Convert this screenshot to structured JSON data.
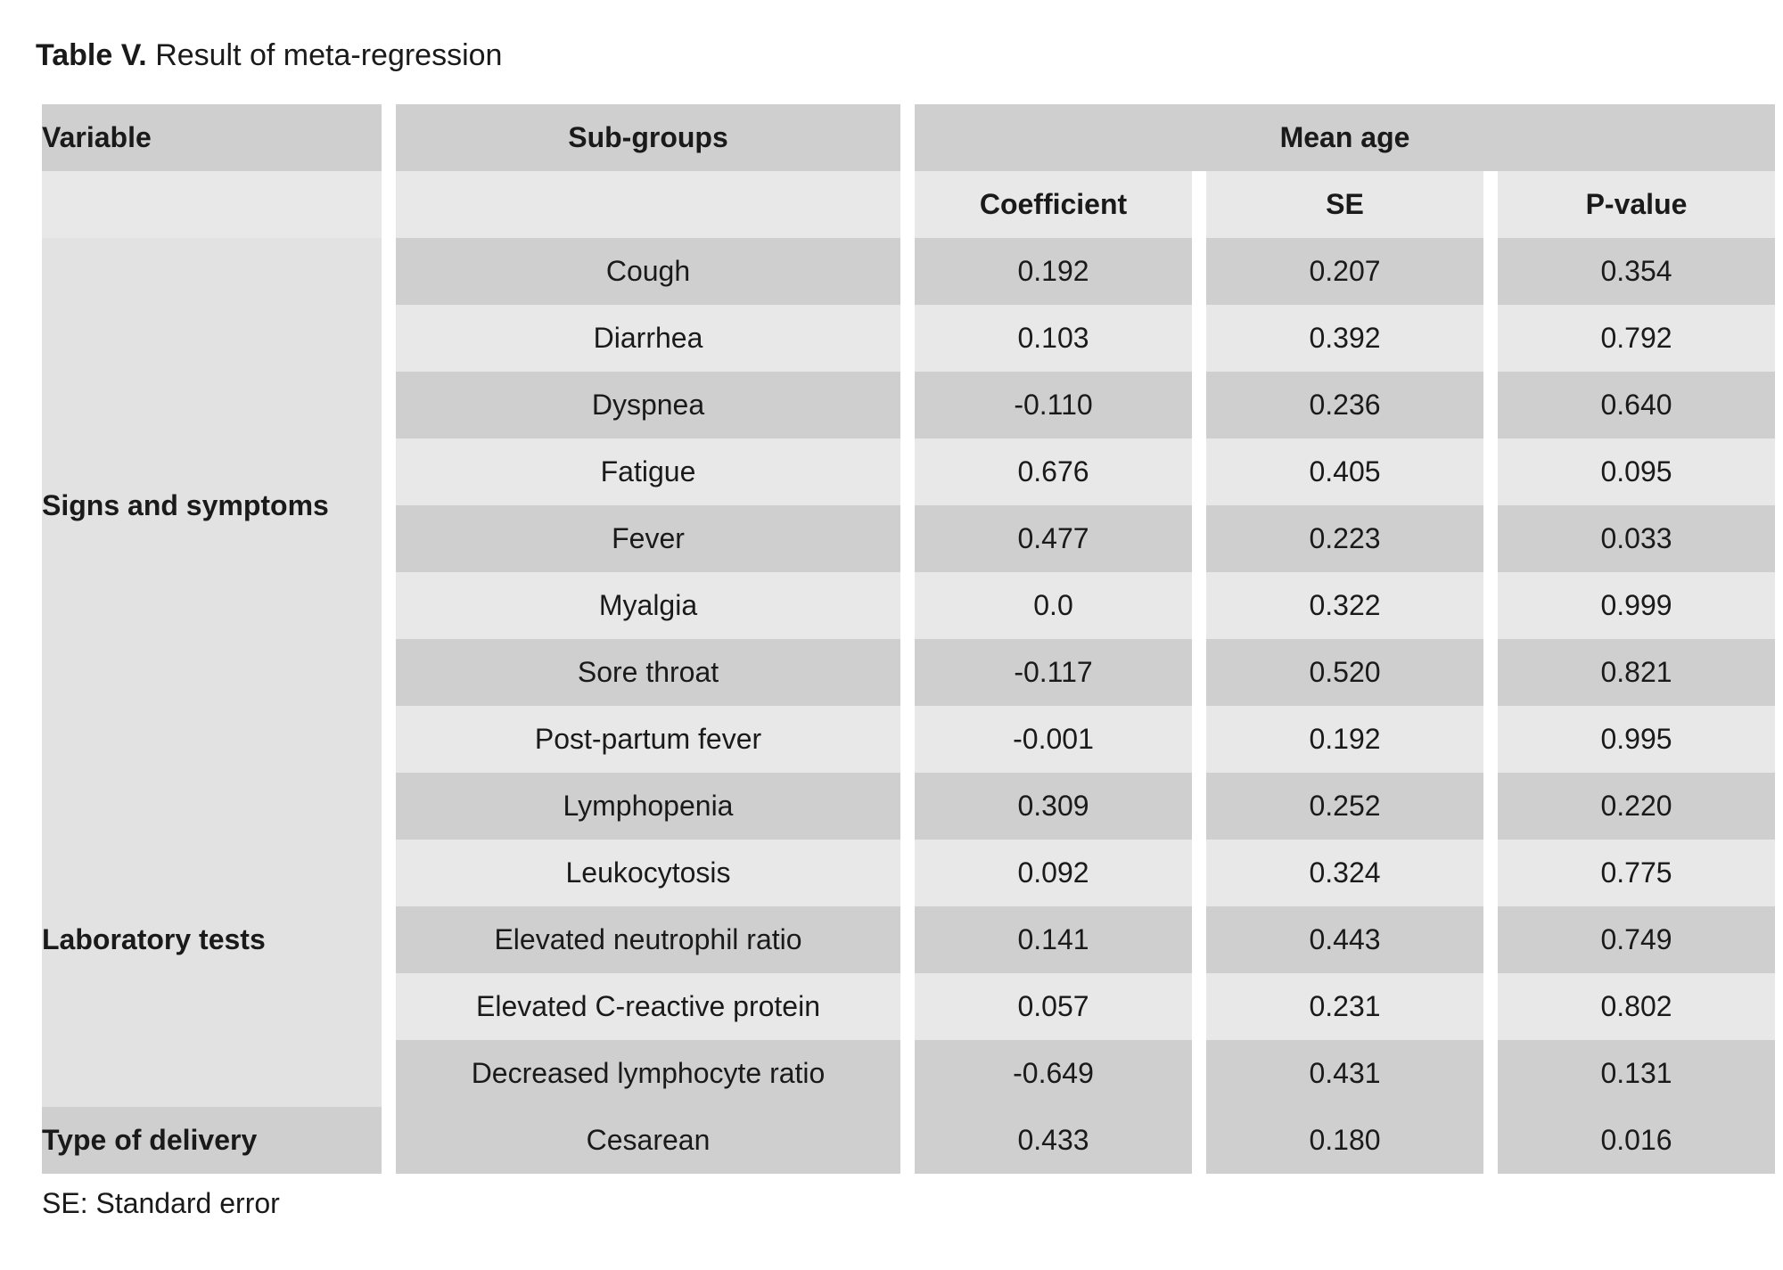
{
  "caption": {
    "label": "Table V.",
    "text": "Result of meta-regression"
  },
  "table": {
    "headers": {
      "variable": "Variable",
      "subgroups": "Sub-groups",
      "group": "Mean age",
      "coefficient": "Coefficient",
      "se": "SE",
      "pvalue": "P-value"
    },
    "variables": [
      "Signs and symptoms",
      "Laboratory tests",
      "Type of delivery"
    ],
    "rows": [
      {
        "subgroup": "Cough",
        "coefficient": "0.192",
        "se": "0.207",
        "pvalue": "0.354"
      },
      {
        "subgroup": "Diarrhea",
        "coefficient": "0.103",
        "se": "0.392",
        "pvalue": "0.792"
      },
      {
        "subgroup": "Dyspnea",
        "coefficient": "-0.110",
        "se": "0.236",
        "pvalue": "0.640"
      },
      {
        "subgroup": "Fatigue",
        "coefficient": "0.676",
        "se": "0.405",
        "pvalue": "0.095"
      },
      {
        "subgroup": "Fever",
        "coefficient": "0.477",
        "se": "0.223",
        "pvalue": "0.033"
      },
      {
        "subgroup": "Myalgia",
        "coefficient": "0.0",
        "se": "0.322",
        "pvalue": "0.999"
      },
      {
        "subgroup": "Sore throat",
        "coefficient": "-0.117",
        "se": "0.520",
        "pvalue": "0.821"
      },
      {
        "subgroup": "Post-partum fever",
        "coefficient": "-0.001",
        "se": "0.192",
        "pvalue": "0.995"
      },
      {
        "subgroup": "Lymphopenia",
        "coefficient": "0.309",
        "se": "0.252",
        "pvalue": "0.220"
      },
      {
        "subgroup": "Leukocytosis",
        "coefficient": "0.092",
        "se": "0.324",
        "pvalue": "0.775"
      },
      {
        "subgroup": "Elevated neutrophil ratio",
        "coefficient": "0.141",
        "se": "0.443",
        "pvalue": "0.749"
      },
      {
        "subgroup": "Elevated C-reactive protein",
        "coefficient": "0.057",
        "se": "0.231",
        "pvalue": "0.802"
      },
      {
        "subgroup": "Decreased lymphocyte ratio",
        "coefficient": "-0.649",
        "se": "0.431",
        "pvalue": "0.131"
      },
      {
        "subgroup": "Cesarean",
        "coefficient": "0.433",
        "se": "0.180",
        "pvalue": "0.016"
      }
    ]
  },
  "footnote": "SE: Standard error"
}
